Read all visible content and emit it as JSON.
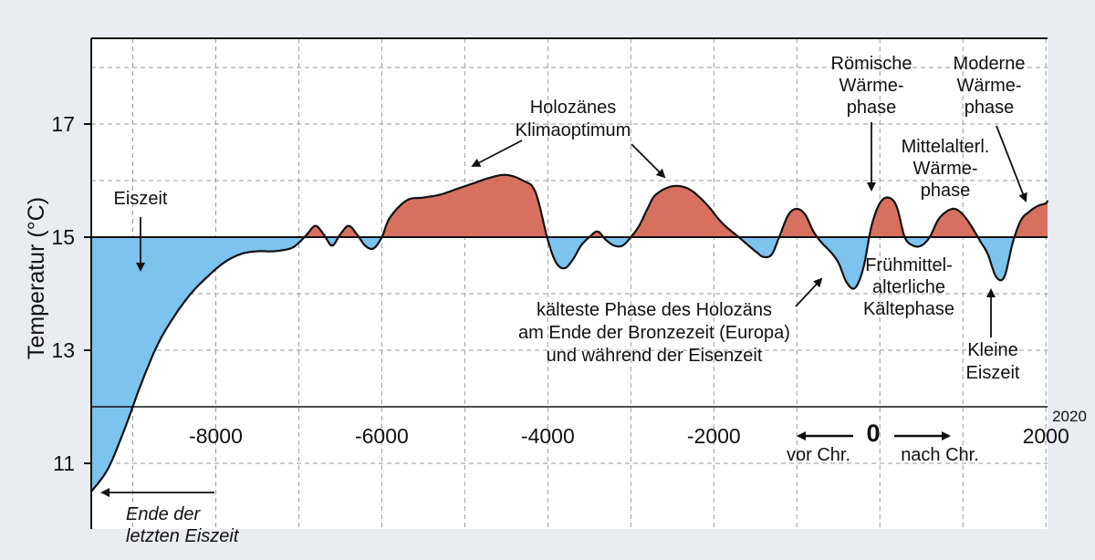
{
  "chart_data": {
    "type": "area",
    "baseline": 15,
    "ylabel": "Temperatur (°C)",
    "xlim": [
      -9500,
      2020
    ],
    "ylim": [
      10,
      18
    ],
    "grid": true,
    "x_ticks": [
      -8000,
      -6000,
      -4000,
      -2000,
      2000
    ],
    "x_tick_labels": [
      "-8000",
      "-6000",
      "-4000",
      "-2000",
      "2000"
    ],
    "y_ticks": [
      11,
      13,
      15,
      17
    ],
    "y_tick_labels": [
      "11",
      "13",
      "15",
      "17"
    ],
    "zero_label": "0",
    "end_year_label": "2020",
    "direction_labels": {
      "before": "vor Chr.",
      "after": "nach Chr."
    },
    "colors": {
      "warm": "#d87060",
      "cold": "#7cc3ee",
      "line": "#111111",
      "grid": "#9a9a9a"
    },
    "series": [
      {
        "x": [
          -9500,
          -9300,
          -9100,
          -8900,
          -8700,
          -8500,
          -8300,
          -8100,
          -7900,
          -7700,
          -7500,
          -7300,
          -7100,
          -7000,
          -6900,
          -6800,
          -6700,
          -6600,
          -6500,
          -6400,
          -6300,
          -6200,
          -6100,
          -6000,
          -5900,
          -5700,
          -5500,
          -5300,
          -5100,
          -4900,
          -4700,
          -4500,
          -4300,
          -4150,
          -4000,
          -3900,
          -3800,
          -3700,
          -3600,
          -3500,
          -3400,
          -3300,
          -3200,
          -3100,
          -3000,
          -2900,
          -2800,
          -2700,
          -2500,
          -2300,
          -2100,
          -1900,
          -1700,
          -1500,
          -1400,
          -1300,
          -1200,
          -1100,
          -1000,
          -900,
          -800,
          -700,
          -600,
          -500,
          -400,
          -300,
          -200,
          -100,
          0,
          100,
          200,
          300,
          400,
          500,
          600,
          700,
          800,
          900,
          1000,
          1100,
          1200,
          1300,
          1400,
          1500,
          1600,
          1700,
          1800,
          1900,
          2000,
          2020
        ],
        "y": [
          10.5,
          10.9,
          11.6,
          12.4,
          13.1,
          13.6,
          14.0,
          14.3,
          14.55,
          14.7,
          14.75,
          14.75,
          14.8,
          14.9,
          15.05,
          15.2,
          15.05,
          14.85,
          15.05,
          15.2,
          15.05,
          14.85,
          14.8,
          15.0,
          15.35,
          15.65,
          15.7,
          15.75,
          15.85,
          15.95,
          16.05,
          16.1,
          16.0,
          15.8,
          14.95,
          14.55,
          14.45,
          14.6,
          14.85,
          15.0,
          15.1,
          14.95,
          14.85,
          14.85,
          15.0,
          15.2,
          15.5,
          15.75,
          15.9,
          15.85,
          15.6,
          15.25,
          15.0,
          14.75,
          14.65,
          14.7,
          15.05,
          15.4,
          15.5,
          15.4,
          15.1,
          14.9,
          14.75,
          14.55,
          14.2,
          14.1,
          14.45,
          15.2,
          15.6,
          15.7,
          15.55,
          15.0,
          14.85,
          14.85,
          15.0,
          15.3,
          15.45,
          15.5,
          15.4,
          15.2,
          14.95,
          14.7,
          14.3,
          14.3,
          14.9,
          15.3,
          15.45,
          15.55,
          15.6,
          15.65
        ]
      }
    ],
    "annotations": {
      "eiszeit": "Eiszeit",
      "holozaen_l1": "Holozänes",
      "holozaen_l2": "Klimaoptimum",
      "roemisch_l1": "Römische",
      "roemisch_l2": "Wärme-",
      "roemisch_l3": "phase",
      "modern_l1": "Moderne",
      "modern_l2": "Wärme-",
      "modern_l3": "phase",
      "mittel_l1": "Mittelalterl.",
      "mittel_l2": "Wärme-",
      "mittel_l3": "phase",
      "frueh_l1": "Frühmittel-",
      "frueh_l2": "alterliche",
      "frueh_l3": "Kältephase",
      "kaelteste_l1": "kälteste Phase des Holozäns",
      "kaelteste_l2": "am Ende der Bronzezeit (Europa)",
      "kaelteste_l3": "und während der Eisenzeit",
      "kleine_l1": "Kleine",
      "kleine_l2": "Eiszeit",
      "ende_l1": "Ende der",
      "ende_l2": "letzten Eiszeit"
    }
  }
}
